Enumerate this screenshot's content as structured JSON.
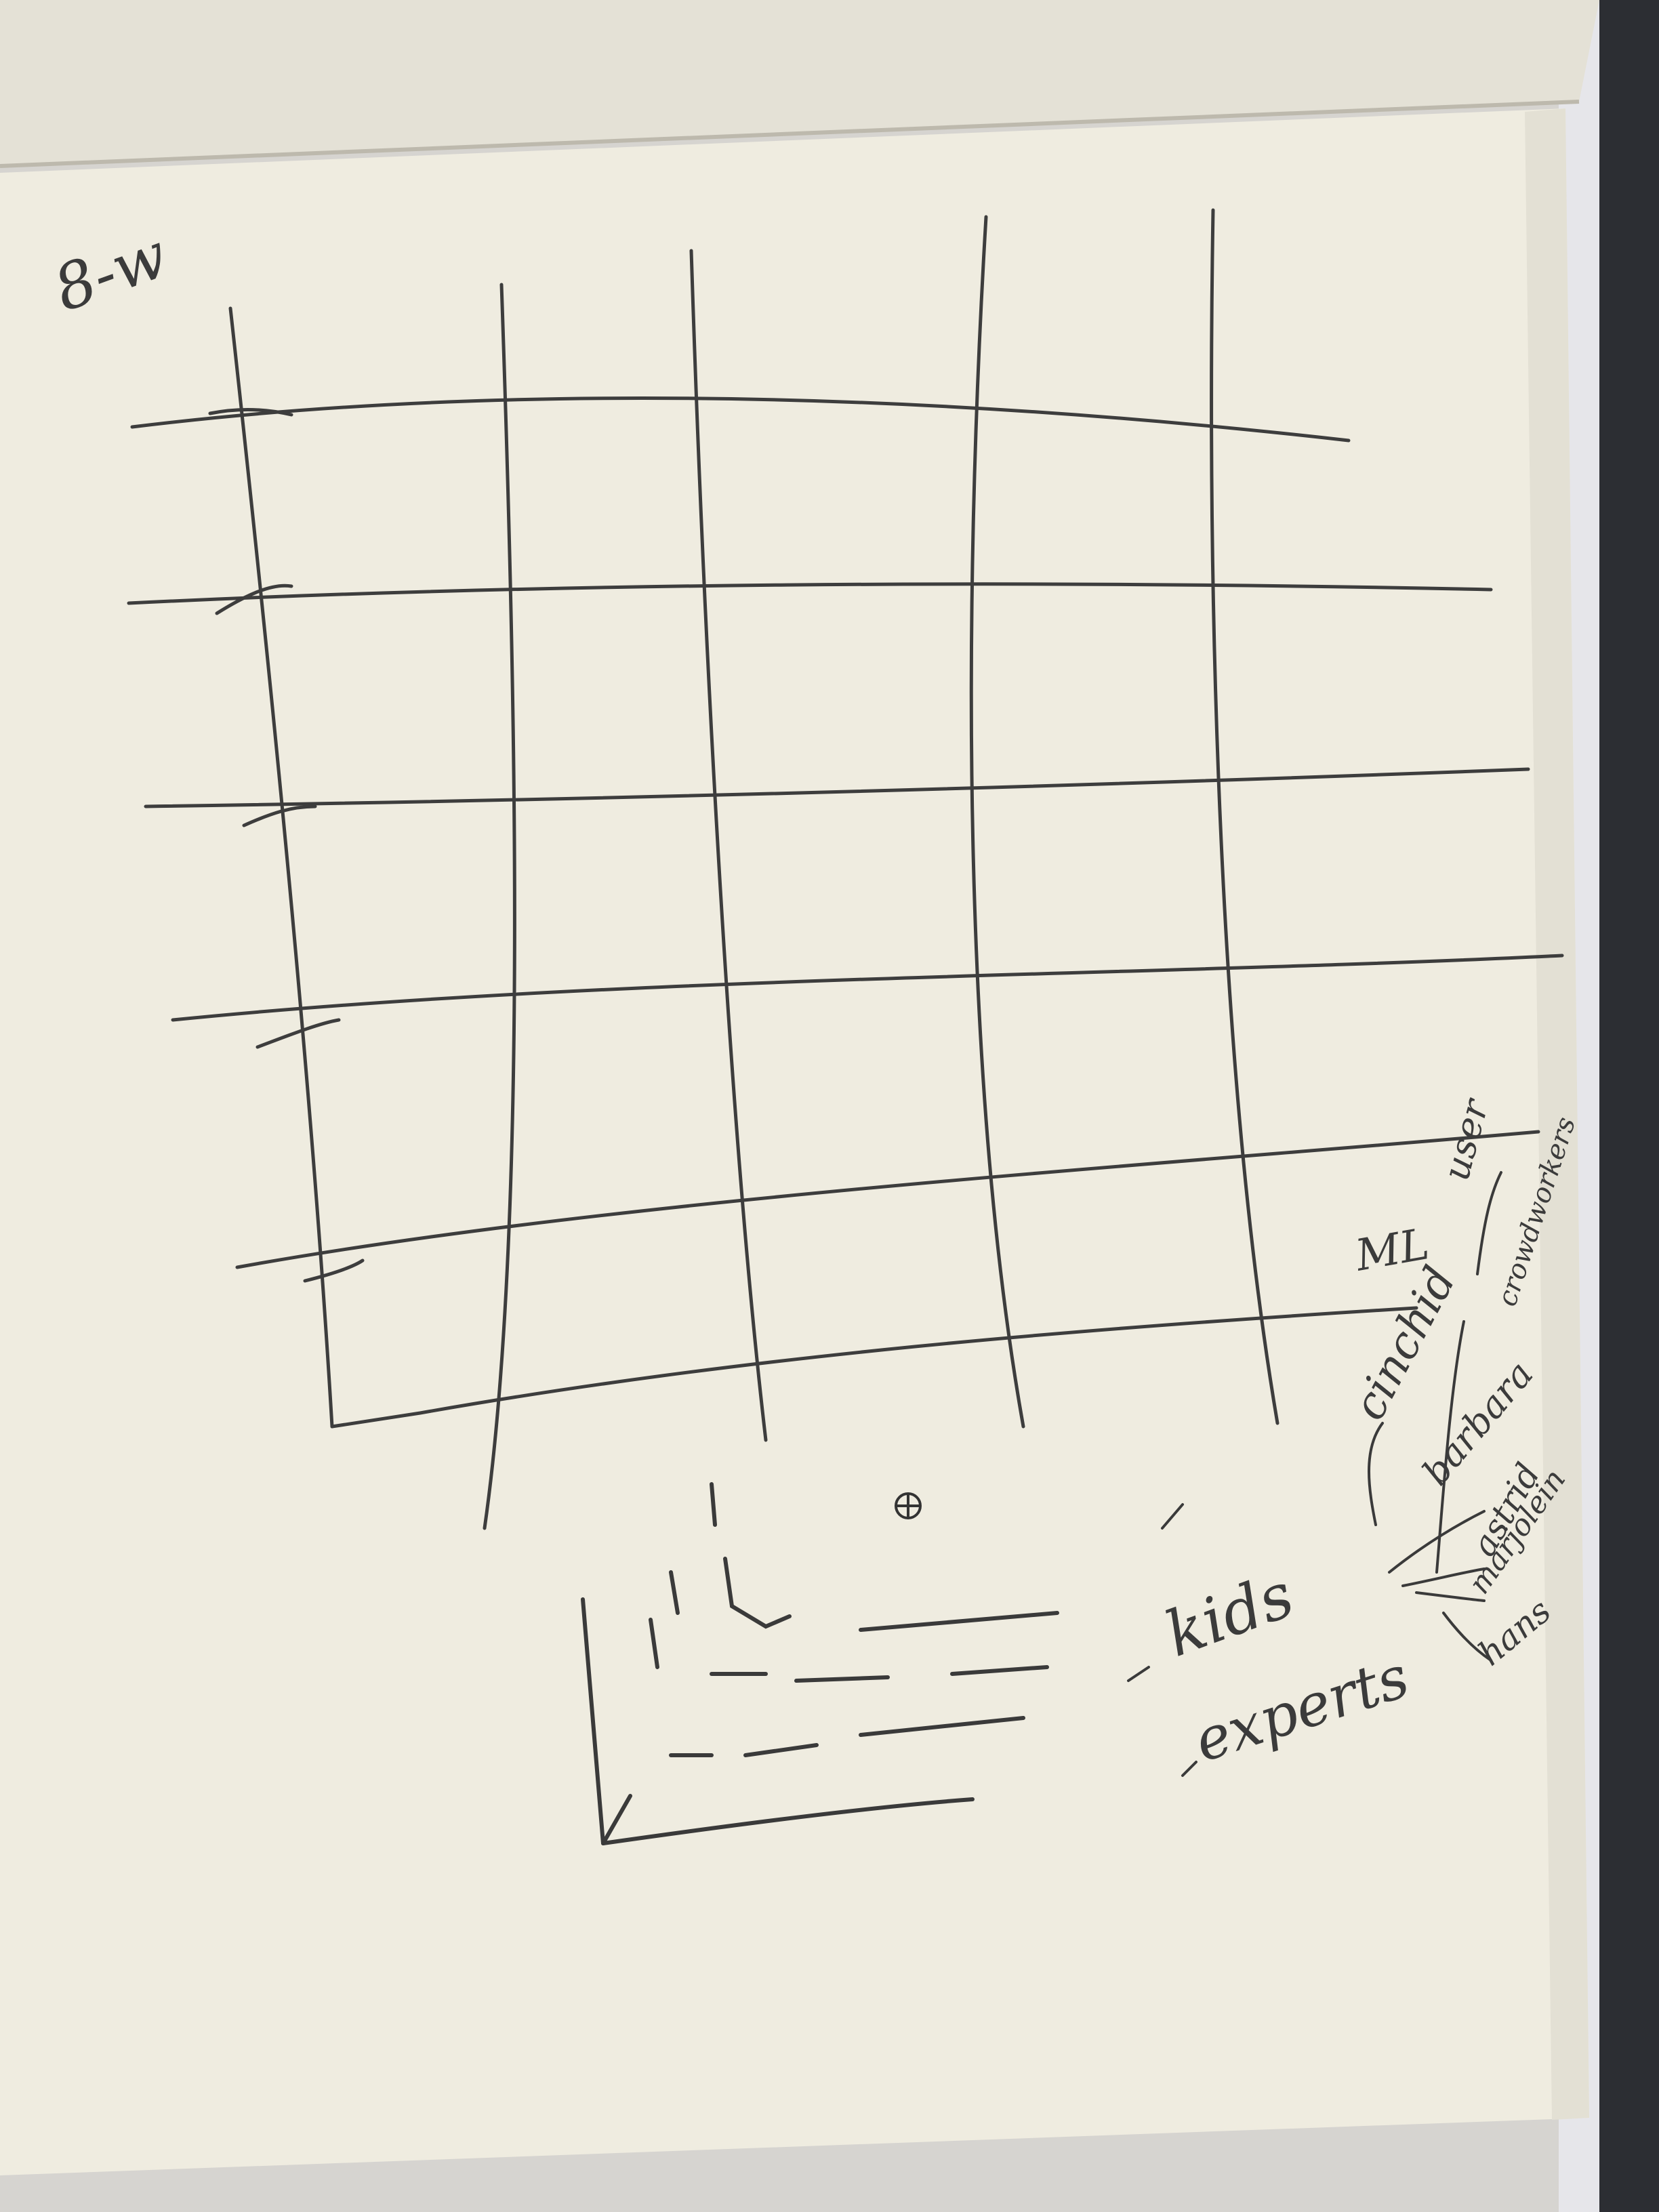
{
  "corner_note": "8-w",
  "labels": {
    "kids": "kids",
    "experts": "experts",
    "ml": "ML",
    "user": "user",
    "crowdworkers": "crowdworkers",
    "cinchid": "cinchid",
    "barbara": "barbara",
    "astrid": "astrid",
    "marjolein": "marjolein",
    "hans": "hans"
  },
  "colors": {
    "paper": "#efece0",
    "paper_shadow": "#d8d4c6",
    "ink": "#3b3b3b",
    "background": "#dcdad6"
  }
}
